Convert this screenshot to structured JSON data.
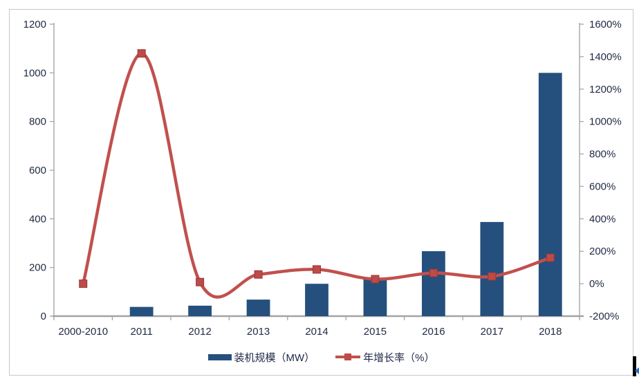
{
  "chart_data": {
    "type": "bar+line (dual axis combo)",
    "title": "",
    "categories": [
      "2000-2010",
      "2011",
      "2012",
      "2013",
      "2014",
      "2015",
      "2016",
      "2017",
      "2018"
    ],
    "series": [
      {
        "name": "装机规模（MW）",
        "type": "bar",
        "axis": "left",
        "color": "#25507E",
        "values": [
          0,
          38,
          43,
          68,
          133,
          158,
          267,
          387,
          1000
        ]
      },
      {
        "name": "年增长率（%）",
        "type": "line",
        "axis": "right",
        "color": "#C1504E",
        "marker": "square",
        "values": [
          0,
          1420,
          10,
          57,
          88,
          28,
          66,
          45,
          160
        ]
      }
    ],
    "y_left": {
      "min": 0,
      "max": 1200,
      "step": 200,
      "ticks": [
        "0",
        "200",
        "400",
        "600",
        "800",
        "1000",
        "1200"
      ]
    },
    "y_right": {
      "min": -200,
      "max": 1600,
      "step": 200,
      "suffix": "%",
      "ticks": [
        "-200%",
        "0%",
        "200%",
        "400%",
        "600%",
        "800%",
        "1000%",
        "1200%",
        "1400%",
        "1600%"
      ]
    },
    "legend": [
      {
        "label": "装机规模（MW）",
        "swatch": "bar"
      },
      {
        "label": "年增长率（%）",
        "swatch": "line-square"
      }
    ],
    "grid": "off",
    "legend_position": "bottom-center"
  },
  "colors": {
    "bar": "#25507E",
    "line": "#C1504E",
    "marker_fill": "#BE4B48",
    "marker_edge": "#953735",
    "axis_line": "#A6A6A6",
    "bottom_axis_line": "#A3A3A3",
    "axis_text": "#1F2A44",
    "frame_border": "#C8C8C8",
    "scroll_fragment": "#000000",
    "scroll_arrow": "#2B6BD6"
  }
}
